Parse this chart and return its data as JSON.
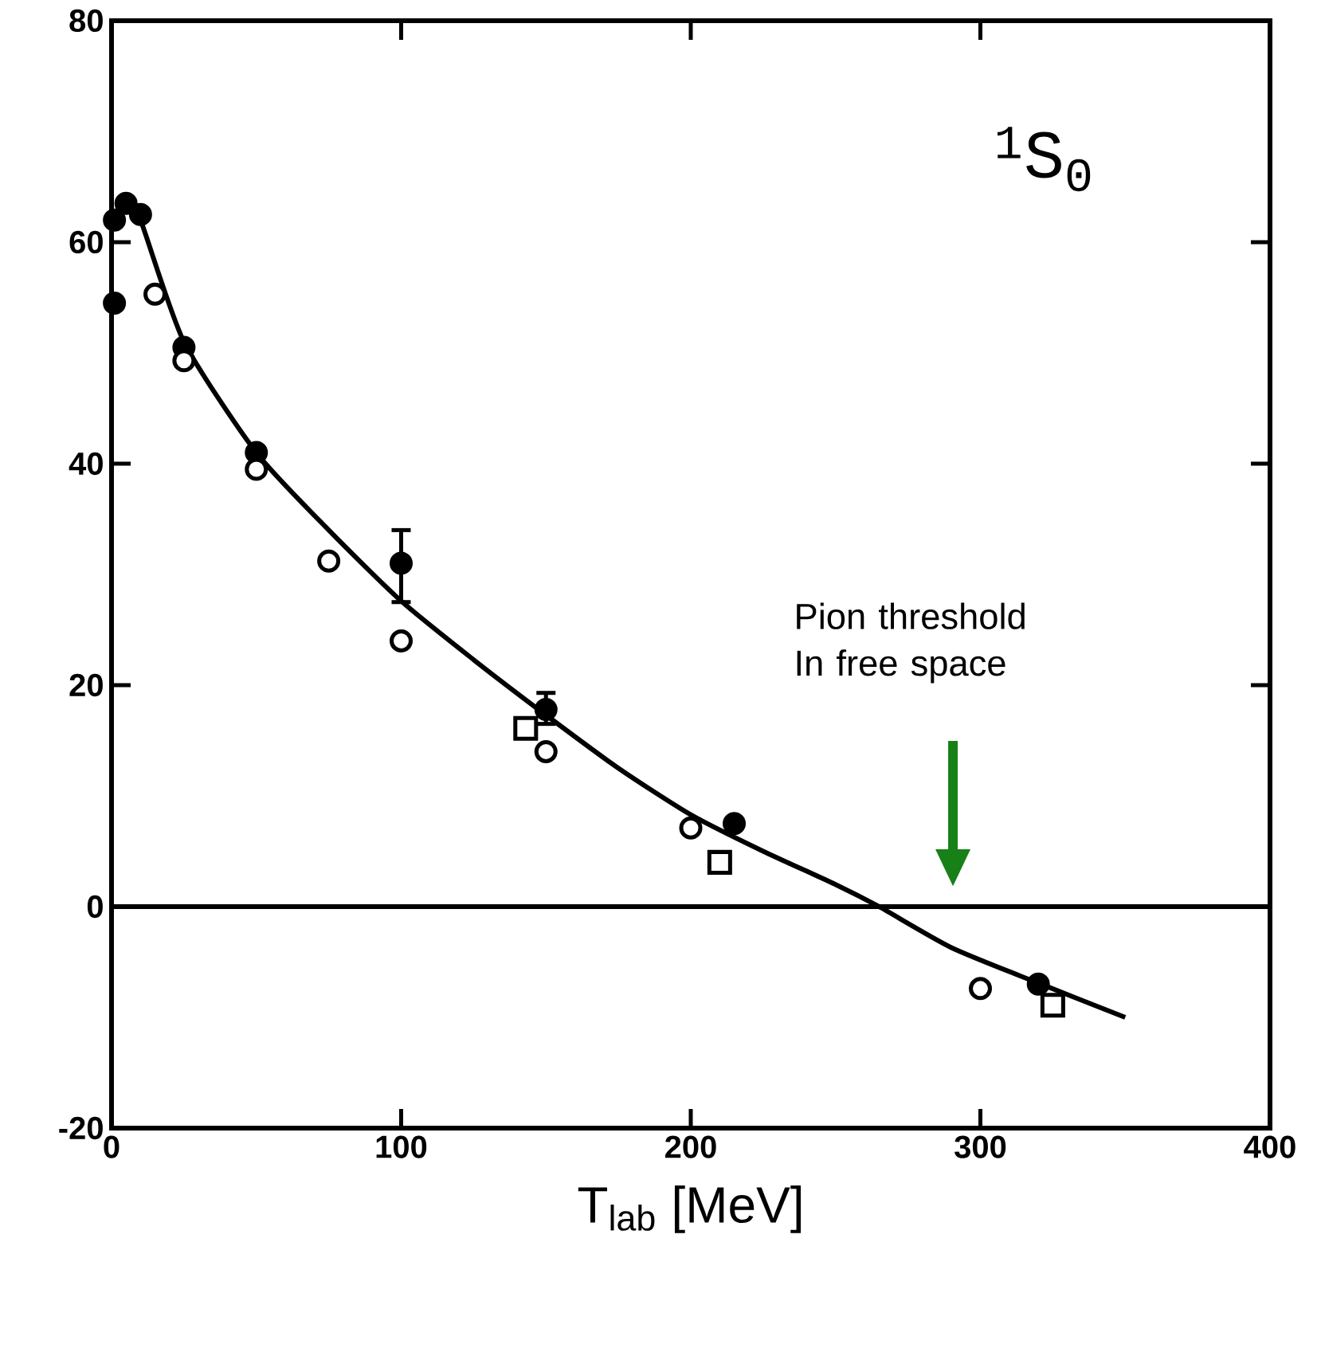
{
  "chart_data": {
    "type": "scatter",
    "title": "$^{1}$S$_{0}$",
    "xlabel": "T$_{lab}$ [MeV]",
    "xlim": [
      0,
      400
    ],
    "ylim": [
      -20,
      80
    ],
    "xticks": [
      0,
      100,
      200,
      300,
      400
    ],
    "yticks": [
      -20,
      0,
      20,
      40,
      60,
      80
    ],
    "grid": false,
    "series": [
      {
        "marker": "circle",
        "color": "#000000",
        "x": [
          1,
          1,
          5,
          10,
          25,
          50,
          100,
          150,
          215,
          320
        ],
        "values": [
          54.5,
          62,
          63.5,
          62.5,
          50.5,
          41,
          31,
          17.8,
          7.5,
          -7
        ],
        "errors": [
          null,
          null,
          null,
          null,
          null,
          null,
          [
            27.5,
            34
          ],
          [
            16.5,
            19.3
          ],
          null,
          null
        ]
      },
      {
        "marker": "circle",
        "color": "#000000",
        "x": [
          15,
          25,
          50,
          75,
          100,
          150,
          200,
          300
        ],
        "values": [
          55.3,
          49.3,
          39.5,
          31.2,
          24,
          14,
          7.1,
          -7.4
        ]
      },
      {
        "marker": "square",
        "color": "#000000",
        "x": [
          143,
          210,
          325
        ],
        "values": [
          16.1,
          4,
          -8.9
        ]
      },
      {
        "type": "line",
        "marker": "none",
        "color": "#000000",
        "x": [
          5,
          10,
          25,
          50,
          75,
          100,
          125,
          150,
          175,
          200,
          225,
          250,
          265,
          290,
          320,
          350
        ],
        "values": [
          64,
          62,
          51,
          41,
          34,
          27.6,
          22.3,
          17.3,
          12.5,
          8.3,
          5,
          2,
          0,
          -3.7,
          -6.9,
          -10
        ]
      }
    ],
    "ref_lines": [
      {
        "axis": "y",
        "value": 0,
        "color": "#000000"
      }
    ],
    "annotations": [
      "Pion threshold In free space"
    ]
  }
}
